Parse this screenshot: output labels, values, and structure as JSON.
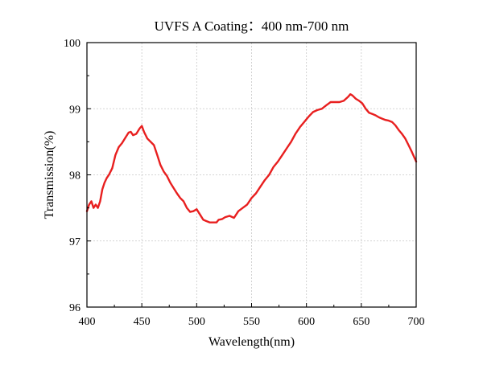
{
  "chart_data": {
    "type": "line",
    "title": "UVFS A Coating：400 nm-700 nm",
    "xlabel": "Wavelength(nm)",
    "ylabel": "Transmission(%)",
    "xlim": [
      400,
      700
    ],
    "ylim": [
      96,
      100
    ],
    "x_ticks": [
      "400",
      "450",
      "500",
      "550",
      "600",
      "650",
      "700"
    ],
    "y_ticks": [
      "96",
      "97",
      "98",
      "99",
      "100"
    ],
    "grid": true,
    "legend": "none",
    "series": [
      {
        "color": "#e81f1f",
        "x": [
          400,
          402,
          404,
          406,
          408,
          410,
          412,
          414,
          416,
          418,
          420,
          423,
          426,
          429,
          432,
          435,
          438,
          440,
          442,
          445,
          448,
          450,
          452,
          455,
          458,
          461,
          464,
          467,
          470,
          473,
          476,
          479,
          482,
          485,
          488,
          491,
          494,
          497,
          500,
          503,
          506,
          509,
          512,
          515,
          518,
          520,
          523,
          526,
          530,
          534,
          538,
          542,
          546,
          550,
          554,
          558,
          562,
          566,
          570,
          574,
          578,
          582,
          586,
          590,
          594,
          598,
          602,
          606,
          610,
          614,
          618,
          622,
          626,
          630,
          634,
          638,
          640,
          642,
          645,
          648,
          651,
          654,
          657,
          660,
          663,
          666,
          669,
          672,
          675,
          678,
          681,
          684,
          687,
          690,
          693,
          696,
          700
        ],
        "y": [
          97.45,
          97.55,
          97.6,
          97.5,
          97.55,
          97.5,
          97.6,
          97.78,
          97.88,
          97.95,
          98.0,
          98.1,
          98.3,
          98.42,
          98.48,
          98.56,
          98.64,
          98.65,
          98.6,
          98.62,
          98.7,
          98.74,
          98.65,
          98.55,
          98.5,
          98.45,
          98.3,
          98.15,
          98.05,
          97.98,
          97.88,
          97.8,
          97.72,
          97.65,
          97.6,
          97.5,
          97.44,
          97.45,
          97.48,
          97.4,
          97.32,
          97.3,
          97.28,
          97.28,
          97.28,
          97.32,
          97.33,
          97.36,
          97.38,
          97.35,
          97.45,
          97.5,
          97.55,
          97.65,
          97.72,
          97.82,
          97.92,
          98.0,
          98.12,
          98.2,
          98.3,
          98.4,
          98.5,
          98.62,
          98.72,
          98.8,
          98.88,
          98.95,
          98.98,
          99.0,
          99.05,
          99.1,
          99.1,
          99.1,
          99.12,
          99.18,
          99.22,
          99.2,
          99.15,
          99.12,
          99.08,
          99.0,
          98.94,
          98.92,
          98.9,
          98.87,
          98.85,
          98.83,
          98.82,
          98.8,
          98.75,
          98.68,
          98.62,
          98.55,
          98.45,
          98.35,
          98.2
        ]
      }
    ]
  }
}
